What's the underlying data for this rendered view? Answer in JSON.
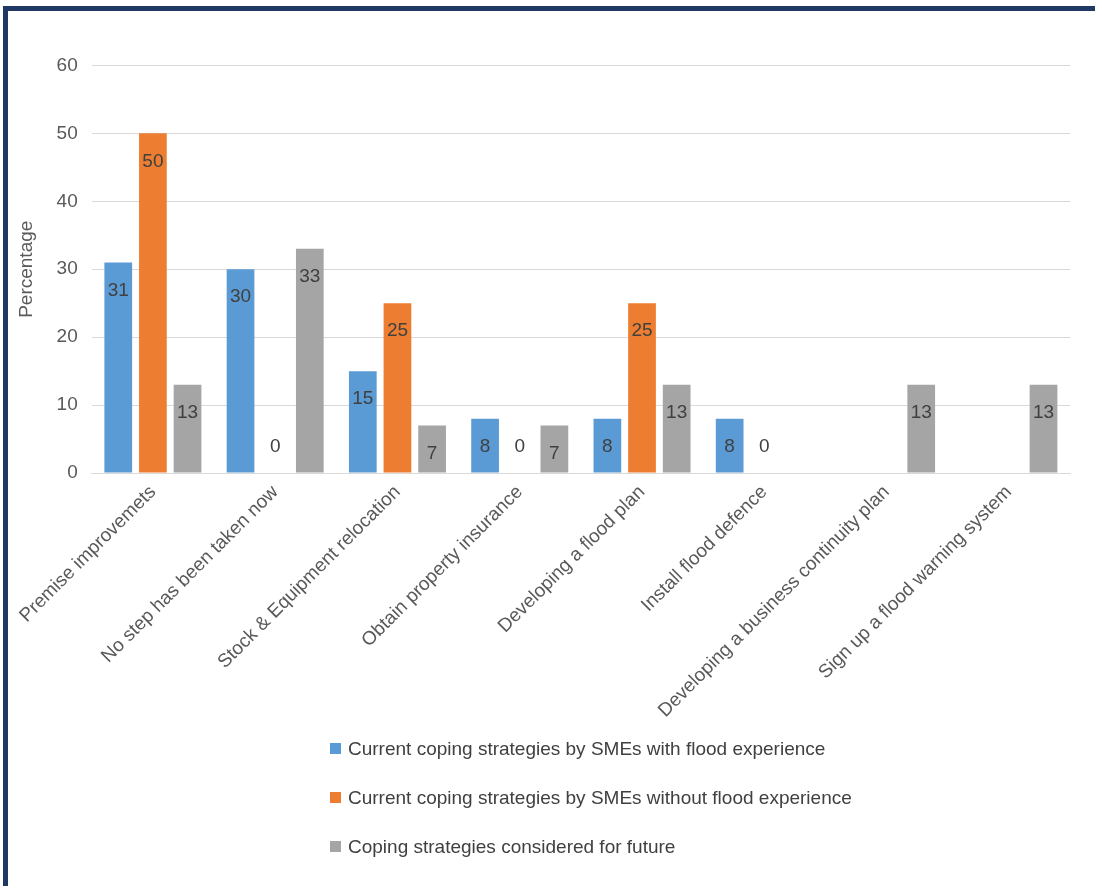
{
  "chart_data": {
    "type": "bar",
    "ylabel": "Percentage",
    "categories": [
      "Premise improvemets",
      "No step has been taken now",
      "Stock & Equipment relocation",
      "Obtain property insurance",
      "Developing a flood plan",
      "Install flood defence",
      "Developing a business continuity plan",
      "Sign up a flood warning system"
    ],
    "series": [
      {
        "name": "Current coping strategies by SMEs with flood experience",
        "color": "#5b9bd5",
        "values": [
          31,
          30,
          15,
          8,
          8,
          8,
          null,
          null
        ]
      },
      {
        "name": "Current coping strategies by SMEs without flood experience",
        "color": "#ed7d31",
        "values": [
          50,
          0,
          25,
          0,
          25,
          0,
          null,
          null
        ]
      },
      {
        "name": "Coping strategies considered for future",
        "color": "#a5a5a5",
        "values": [
          13,
          33,
          7,
          7,
          13,
          null,
          13,
          13
        ]
      }
    ],
    "ylim": [
      0,
      60
    ],
    "yticks": [
      0,
      10,
      20,
      30,
      40,
      50,
      60
    ],
    "grid": "y",
    "legend": "bottom",
    "data_labels": true
  }
}
